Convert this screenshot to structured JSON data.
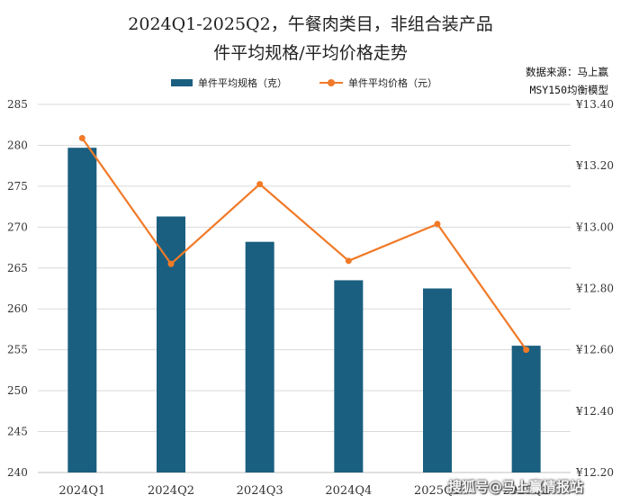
{
  "title_line1": "2024Q1-2025Q2，午餐肉类目，非组合装产品",
  "title_line2": "件平均规格/平均价格走势",
  "source_line1": "数据来源：马上赢",
  "source_line2": "MSY150均衡模型",
  "watermark": "搜狐号@马上赢情报站",
  "colors": {
    "bar": "#1a5f80",
    "line": "#f07a28",
    "grid": "#d9d9d9"
  },
  "chart_data": {
    "type": "bar+line",
    "categories": [
      "2024Q1",
      "2024Q2",
      "2024Q3",
      "2024Q4",
      "2025Q1",
      "2025Q2"
    ],
    "series": [
      {
        "name": "单件平均规格（克）",
        "type": "bar",
        "axis": "left",
        "values": [
          279.7,
          271.3,
          268.2,
          263.5,
          262.5,
          255.5
        ]
      },
      {
        "name": "单件平均价格（元）",
        "type": "line",
        "axis": "right",
        "values": [
          13.29,
          12.88,
          13.14,
          12.89,
          13.01,
          12.6
        ]
      }
    ],
    "y_left": {
      "min": 240,
      "max": 285,
      "ticks": [
        240,
        245,
        250,
        255,
        260,
        265,
        270,
        275,
        280,
        285
      ]
    },
    "y_right": {
      "min": 12.2,
      "max": 13.4,
      "ticks": [
        12.2,
        12.4,
        12.6,
        12.8,
        13.0,
        13.2,
        13.4
      ],
      "tick_labels": [
        "¥12.20",
        "¥12.40",
        "¥12.60",
        "¥12.80",
        "¥13.00",
        "¥13.20",
        "¥13.40"
      ]
    },
    "grid": true,
    "legend": "top"
  }
}
